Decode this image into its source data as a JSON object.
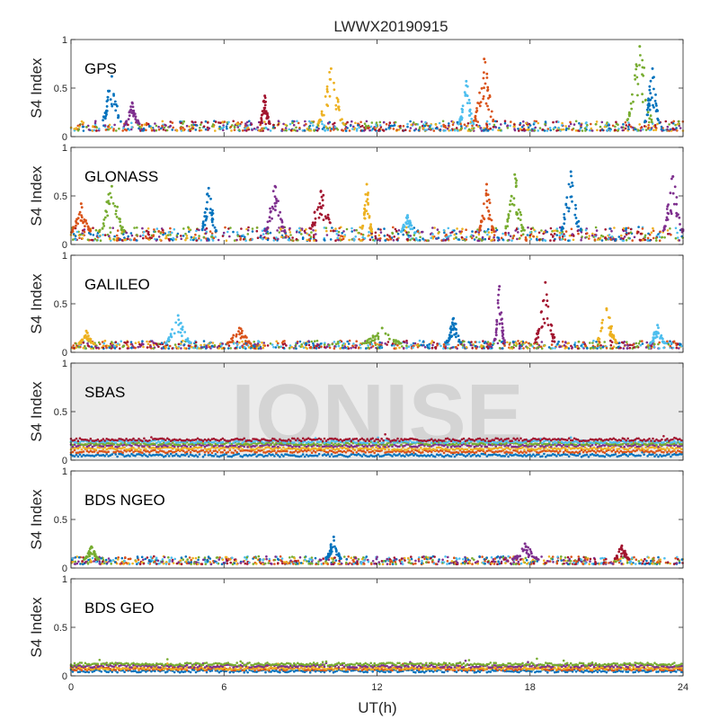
{
  "chart_data": {
    "type": "scatter",
    "title": "LWWX20190915",
    "xlabel": "UT(h)",
    "xlim": [
      0,
      24
    ],
    "xticks": [
      "0",
      "6",
      "12",
      "18",
      "24"
    ],
    "ylabel": "S4 Index",
    "ylim": [
      0,
      1
    ],
    "yticks": [
      "0",
      "0.5",
      "1"
    ],
    "watermark": "IONISE",
    "series_colors": [
      "#0072BD",
      "#D95319",
      "#EDB120",
      "#7E2F8E",
      "#77AC30",
      "#4DBEEE",
      "#A2142F"
    ],
    "panels": [
      {
        "name": "GPS",
        "baseline": [
          0.06,
          0.16
        ],
        "bursts": [
          {
            "t": 1.6,
            "peak": 0.62,
            "width": 0.4
          },
          {
            "t": 2.4,
            "peak": 0.35,
            "width": 0.3
          },
          {
            "t": 7.6,
            "peak": 0.42,
            "width": 0.2
          },
          {
            "t": 10.2,
            "peak": 0.7,
            "width": 0.5
          },
          {
            "t": 15.5,
            "peak": 0.57,
            "width": 0.3
          },
          {
            "t": 16.2,
            "peak": 0.8,
            "width": 0.4
          },
          {
            "t": 22.3,
            "peak": 0.93,
            "width": 0.5
          },
          {
            "t": 22.8,
            "peak": 0.7,
            "width": 0.3
          }
        ]
      },
      {
        "name": "GLONASS",
        "baseline": [
          0.04,
          0.18
        ],
        "bursts": [
          {
            "t": 0.4,
            "peak": 0.42,
            "width": 0.4
          },
          {
            "t": 1.6,
            "peak": 0.6,
            "width": 0.5
          },
          {
            "t": 5.4,
            "peak": 0.58,
            "width": 0.3
          },
          {
            "t": 8.0,
            "peak": 0.6,
            "width": 0.4
          },
          {
            "t": 9.8,
            "peak": 0.55,
            "width": 0.5
          },
          {
            "t": 11.6,
            "peak": 0.62,
            "width": 0.2
          },
          {
            "t": 13.2,
            "peak": 0.3,
            "width": 0.3
          },
          {
            "t": 16.3,
            "peak": 0.62,
            "width": 0.3
          },
          {
            "t": 17.4,
            "peak": 0.72,
            "width": 0.4
          },
          {
            "t": 19.6,
            "peak": 0.75,
            "width": 0.4
          },
          {
            "t": 23.6,
            "peak": 0.7,
            "width": 0.4
          }
        ]
      },
      {
        "name": "GALILEO",
        "baseline": [
          0.04,
          0.12
        ],
        "bursts": [
          {
            "t": 0.6,
            "peak": 0.22,
            "width": 0.3
          },
          {
            "t": 4.2,
            "peak": 0.38,
            "width": 0.5
          },
          {
            "t": 6.6,
            "peak": 0.25,
            "width": 0.5
          },
          {
            "t": 12.2,
            "peak": 0.25,
            "width": 0.8
          },
          {
            "t": 15.0,
            "peak": 0.35,
            "width": 0.3
          },
          {
            "t": 16.8,
            "peak": 0.68,
            "width": 0.2
          },
          {
            "t": 18.6,
            "peak": 0.72,
            "width": 0.4
          },
          {
            "t": 21.0,
            "peak": 0.45,
            "width": 0.4
          },
          {
            "t": 23.0,
            "peak": 0.28,
            "width": 0.3
          }
        ]
      },
      {
        "name": "SBAS",
        "levels": [
          0.05,
          0.09,
          0.12,
          0.15,
          0.17,
          0.19,
          0.21
        ]
      },
      {
        "name": "BDS NGEO",
        "baseline": [
          0.04,
          0.12
        ],
        "bursts": [
          {
            "t": 0.8,
            "peak": 0.22,
            "width": 0.3
          },
          {
            "t": 10.3,
            "peak": 0.32,
            "width": 0.3
          },
          {
            "t": 17.8,
            "peak": 0.25,
            "width": 0.5
          },
          {
            "t": 21.6,
            "peak": 0.23,
            "width": 0.3
          }
        ]
      },
      {
        "name": "BDS GEO",
        "levels": [
          0.05,
          0.07,
          0.08,
          0.1,
          0.12
        ]
      }
    ]
  }
}
